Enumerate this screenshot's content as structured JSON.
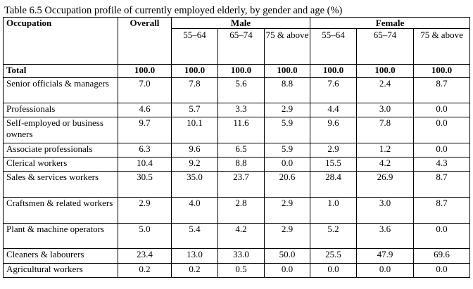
{
  "caption": "Table 6.5 Occupation profile of currently employed elderly, by gender and age (%)",
  "headers": {
    "occupation": "Occupation",
    "overall": "Overall",
    "male": "Male",
    "female": "Female",
    "male_ages": [
      "55–64",
      "65–74",
      "75 & above"
    ],
    "female_ages": [
      "55–64",
      "65–74",
      "75 & above"
    ]
  },
  "rows": [
    {
      "label": "Total",
      "values": [
        "100.0",
        "100.0",
        "100.0",
        "100.0",
        "100.0",
        "100.0",
        "100.0"
      ]
    },
    {
      "label": "Senior officials & managers",
      "values": [
        "7.0",
        "7.8",
        "5.6",
        "8.8",
        "7.6",
        "2.4",
        "8.7"
      ]
    },
    {
      "label": "Professionals",
      "values": [
        "4.6",
        "5.7",
        "3.3",
        "2.9",
        "4.4",
        "3.0",
        "0.0"
      ]
    },
    {
      "label": "Self-employed or business owners",
      "values": [
        "9.7",
        "10.1",
        "11.6",
        "5.9",
        "9.6",
        "7.8",
        "0.0"
      ]
    },
    {
      "label": "Associate professionals",
      "values": [
        "6.3",
        "9.6",
        "6.5",
        "5.9",
        "2.9",
        "1.2",
        "0.0"
      ]
    },
    {
      "label": "Clerical workers",
      "values": [
        "10.4",
        "9.2",
        "8.8",
        "0.0",
        "15.5",
        "4.2",
        "4.3"
      ]
    },
    {
      "label": "Sales & services workers",
      "values": [
        "30.5",
        "35.0",
        "23.7",
        "20.6",
        "28.4",
        "26.9",
        "8.7"
      ]
    },
    {
      "label": "Craftsmen & related workers",
      "values": [
        "2.9",
        "4.0",
        "2.8",
        "2.9",
        "1.0",
        "3.0",
        "8.7"
      ]
    },
    {
      "label": "Plant & machine operators",
      "values": [
        "5.0",
        "5.4",
        "4.2",
        "2.9",
        "5.2",
        "3.6",
        "0.0"
      ]
    },
    {
      "label": "Cleaners & labourers",
      "values": [
        "23.4",
        "13.0",
        "33.0",
        "50.0",
        "25.5",
        "47.9",
        "69.6"
      ]
    },
    {
      "label": "Agricultural workers",
      "values": [
        "0.2",
        "0.2",
        "0.5",
        "0.0",
        "0.0",
        "0.0",
        "0.0"
      ]
    }
  ]
}
